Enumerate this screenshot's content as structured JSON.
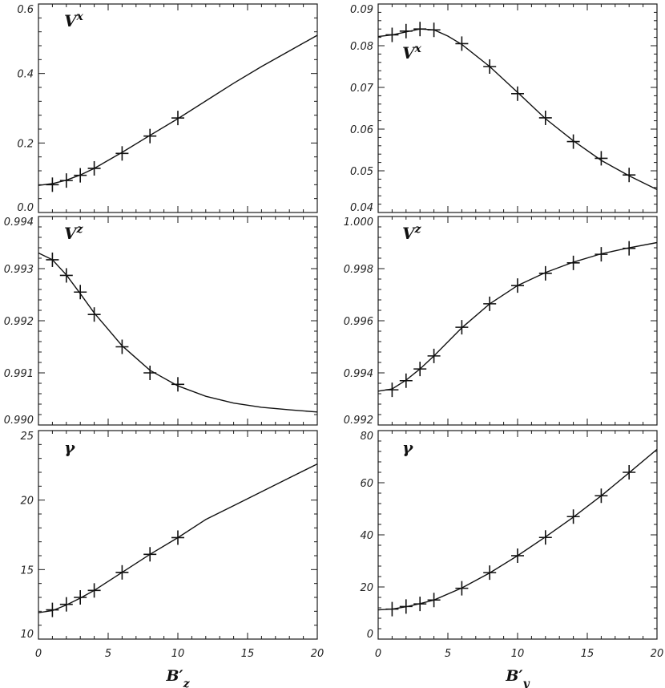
{
  "chart_data": [
    {
      "type": "line",
      "panel_label": "Vx",
      "xlim": [
        0,
        20
      ],
      "ylim": [
        0.0,
        0.6
      ],
      "xticks": [
        "0",
        "5",
        "10",
        "15",
        "20"
      ],
      "yticks": [
        "0.0",
        "0.2",
        "0.4",
        "0.6"
      ],
      "x_markers": [
        1,
        2,
        3,
        4,
        6,
        8,
        10
      ],
      "y_markers": [
        0.08,
        0.092,
        0.107,
        0.127,
        0.17,
        0.22,
        0.272
      ],
      "curve_x": [
        0,
        1,
        2,
        3,
        4,
        6,
        8,
        10,
        12,
        14,
        16,
        18,
        20
      ],
      "curve_y": [
        0.078,
        0.083,
        0.093,
        0.108,
        0.127,
        0.173,
        0.222,
        0.27,
        0.321,
        0.372,
        0.42,
        0.465,
        0.51
      ]
    },
    {
      "type": "line",
      "panel_label": "Vx",
      "xlim": [
        0,
        20
      ],
      "ylim": [
        0.04,
        0.09
      ],
      "xticks": [
        "0",
        "5",
        "10",
        "15",
        "20"
      ],
      "yticks": [
        "0.04",
        "0.05",
        "0.06",
        "0.07",
        "0.08",
        "0.09"
      ],
      "x_markers": [
        1,
        2,
        3,
        4,
        6,
        8,
        10,
        12,
        14,
        16,
        18
      ],
      "y_markers": [
        0.0826,
        0.0835,
        0.084,
        0.0838,
        0.0805,
        0.075,
        0.0685,
        0.0627,
        0.057,
        0.053,
        0.049
      ],
      "curve_x": [
        0,
        1,
        2,
        3,
        4,
        5,
        6,
        8,
        10,
        12,
        14,
        16,
        18,
        20
      ],
      "curve_y": [
        0.0822,
        0.0826,
        0.0833,
        0.084,
        0.0838,
        0.0823,
        0.0803,
        0.075,
        0.0688,
        0.0625,
        0.0572,
        0.0525,
        0.0488,
        0.0455
      ]
    },
    {
      "type": "line",
      "panel_label": "Vz",
      "xlim": [
        0,
        20
      ],
      "ylim": [
        0.99,
        0.994
      ],
      "xticks": [
        "0",
        "5",
        "10",
        "15",
        "20"
      ],
      "yticks": [
        "0.990",
        "0.991",
        "0.992",
        "0.993",
        "0.994"
      ],
      "x_markers": [
        1,
        2,
        3,
        4,
        6,
        8,
        10
      ],
      "y_markers": [
        0.99317,
        0.99287,
        0.99255,
        0.99212,
        0.9915,
        0.991,
        0.99078
      ],
      "curve_x": [
        0,
        1,
        2,
        3,
        4,
        6,
        8,
        10,
        12,
        14,
        16,
        18,
        20
      ],
      "curve_y": [
        0.9933,
        0.99317,
        0.99288,
        0.99252,
        0.99215,
        0.99152,
        0.99105,
        0.99075,
        0.99055,
        0.99042,
        0.99034,
        0.99029,
        0.99025
      ]
    },
    {
      "type": "line",
      "panel_label": "Vz",
      "xlim": [
        0,
        20
      ],
      "ylim": [
        0.992,
        1.0
      ],
      "xticks": [
        "0",
        "5",
        "10",
        "15",
        "20"
      ],
      "yticks": [
        "0.992",
        "0.994",
        "0.996",
        "0.998",
        "1.000"
      ],
      "x_markers": [
        1,
        2,
        3,
        4,
        6,
        8,
        10,
        12,
        14,
        16,
        18
      ],
      "y_markers": [
        0.99335,
        0.9937,
        0.99415,
        0.99465,
        0.99575,
        0.99665,
        0.99735,
        0.99782,
        0.99822,
        0.99855,
        0.99878
      ],
      "curve_x": [
        0,
        1,
        2,
        3,
        4,
        6,
        8,
        10,
        12,
        14,
        16,
        18,
        20
      ],
      "curve_y": [
        0.9933,
        0.99338,
        0.99372,
        0.99415,
        0.99465,
        0.99573,
        0.99665,
        0.99735,
        0.99785,
        0.99825,
        0.99857,
        0.9988,
        0.999
      ]
    },
    {
      "type": "line",
      "panel_label": "γ",
      "xlim": [
        0,
        20
      ],
      "ylim": [
        10,
        25
      ],
      "xticks": [
        "0",
        "5",
        "10",
        "15",
        "20"
      ],
      "yticks": [
        "10",
        "15",
        "20",
        "25"
      ],
      "xlabel": "B′z",
      "x_markers": [
        1,
        2,
        3,
        4,
        6,
        8,
        10
      ],
      "y_markers": [
        12.1,
        12.5,
        13.0,
        13.5,
        14.8,
        16.1,
        17.3
      ],
      "curve_x": [
        0,
        1,
        2,
        3,
        4,
        6,
        8,
        10,
        12,
        14,
        16,
        18,
        20
      ],
      "curve_y": [
        11.9,
        12.05,
        12.45,
        12.95,
        13.5,
        14.8,
        16.1,
        17.3,
        18.6,
        19.6,
        20.6,
        21.6,
        22.6
      ]
    },
    {
      "type": "line",
      "panel_label": "γ",
      "xlim": [
        0,
        20
      ],
      "ylim": [
        0,
        80
      ],
      "xticks": [
        "0",
        "5",
        "10",
        "15",
        "20"
      ],
      "yticks": [
        "0",
        "20",
        "40",
        "60",
        "80"
      ],
      "xlabel": "B′y",
      "x_markers": [
        1,
        2,
        3,
        4,
        6,
        8,
        10,
        12,
        14,
        16,
        18
      ],
      "y_markers": [
        11.5,
        12.5,
        13.5,
        15,
        19.5,
        25.5,
        32,
        39,
        47,
        55,
        64
      ],
      "curve_x": [
        0,
        1,
        2,
        3,
        4,
        6,
        8,
        10,
        12,
        14,
        16,
        18,
        20
      ],
      "curve_y": [
        11.2,
        11.5,
        12.4,
        13.6,
        15.0,
        19.6,
        25.4,
        32.0,
        39.2,
        46.8,
        55.0,
        63.8,
        72.8
      ]
    }
  ]
}
